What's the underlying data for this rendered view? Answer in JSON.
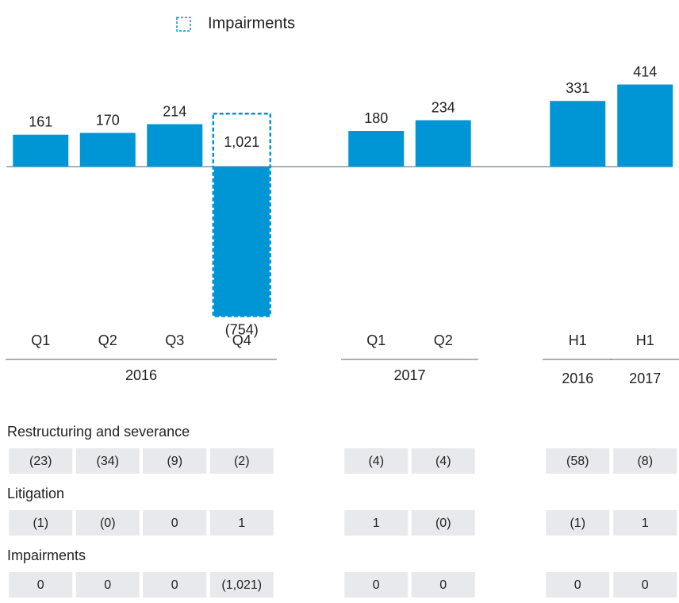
{
  "chart_data": {
    "type": "bar",
    "color": "#0096d6",
    "legend": "Impairments",
    "groups": [
      {
        "label": "2016",
        "categories": [
          "Q1",
          "Q2",
          "Q3",
          "Q4"
        ]
      },
      {
        "label": "2017",
        "categories": [
          "Q1",
          "Q2"
        ]
      },
      {
        "label": "2016",
        "categories": [
          "H1"
        ]
      },
      {
        "label": "2017",
        "categories": [
          "H1"
        ]
      }
    ],
    "values": [
      161,
      170,
      214,
      -754,
      180,
      234,
      331,
      414
    ],
    "value_labels": [
      "161",
      "170",
      "214",
      "(754)",
      "180",
      "234",
      "331",
      "414"
    ],
    "overlay": {
      "name": "Impairments",
      "color": "#0096d6",
      "values": [
        null,
        null,
        null,
        1021,
        null,
        null,
        null,
        null
      ],
      "value_labels": [
        null,
        null,
        null,
        "1,021",
        null,
        null,
        null,
        null
      ]
    },
    "ylim": [
      -780,
      480
    ]
  },
  "table": {
    "rows": [
      {
        "label": "Restructuring and severance",
        "cells": [
          "(23)",
          "(34)",
          "(9)",
          "(2)",
          "(4)",
          "(4)",
          "(58)",
          "(8)"
        ]
      },
      {
        "label": "Litigation",
        "cells": [
          "(1)",
          "(0)",
          "0",
          "1",
          "1",
          "(0)",
          "(1)",
          "1"
        ]
      },
      {
        "label": "Impairments",
        "cells": [
          "0",
          "0",
          "0",
          "(1,021)",
          "0",
          "0",
          "0",
          "0"
        ]
      }
    ]
  }
}
